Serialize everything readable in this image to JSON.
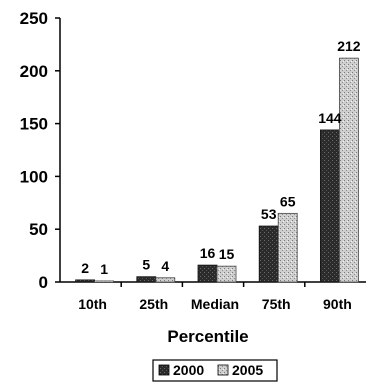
{
  "chart_data": {
    "type": "bar",
    "categories": [
      "10th",
      "25th",
      "Median",
      "75th",
      "90th"
    ],
    "series": [
      {
        "name": "2000",
        "values": [
          2,
          5,
          16,
          53,
          144
        ],
        "color": "#2a2a2a",
        "pattern": "dark-stipple"
      },
      {
        "name": "2005",
        "values": [
          1,
          4,
          15,
          65,
          212
        ],
        "color": "#b9b9b9",
        "pattern": "light-stipple"
      }
    ],
    "data_labels": {
      "2000": [
        "2",
        "5",
        "16",
        "53",
        "144"
      ],
      "2005": [
        "1",
        "4",
        "15",
        "65",
        "212"
      ]
    },
    "xlabel": "Percentile",
    "ylabel": "",
    "ylim": [
      0,
      250
    ],
    "yticks": [
      0,
      50,
      100,
      150,
      200,
      250
    ],
    "grid": false,
    "legend": {
      "position": "bottom-center",
      "entries": [
        "2000",
        "2005"
      ]
    }
  }
}
